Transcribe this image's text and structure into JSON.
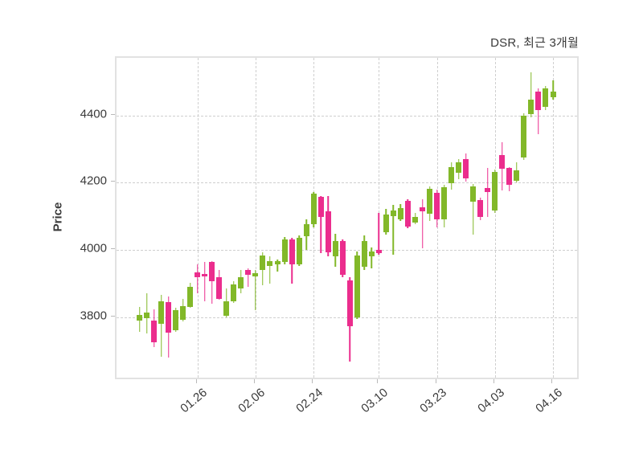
{
  "title": "DSR, 최근 3개월",
  "colors": {
    "up": "#82b829",
    "down": "#eb2d8d",
    "grid": "#cfcfcf",
    "plot_border": "#e2e2e2",
    "text": "#3a3a3a",
    "background": "#ffffff"
  },
  "chart_data": {
    "type": "candlestick",
    "title": "DSR, 최근 3개월",
    "subtitle": "",
    "xlabel": "",
    "ylabel": "Price",
    "legend": "none",
    "grid": "dashed",
    "y_ticks": [
      3800,
      4000,
      4200,
      4400
    ],
    "y_domain": [
      3610,
      4572
    ],
    "x_tick_labels": [
      "01.26",
      "02.06",
      "02.24",
      "03.10",
      "03.23",
      "04.03",
      "04.16"
    ],
    "x_tick_indices": [
      8,
      16,
      24,
      33,
      41,
      49,
      57
    ],
    "candle_columns": [
      "open",
      "high",
      "low",
      "close"
    ],
    "candles": [
      [
        3790,
        3830,
        3755,
        3806
      ],
      [
        3796,
        3870,
        3750,
        3814
      ],
      [
        3790,
        3824,
        3710,
        3726
      ],
      [
        3780,
        3867,
        3682,
        3847
      ],
      [
        3845,
        3862,
        3680,
        3753
      ],
      [
        3761,
        3827,
        3755,
        3820
      ],
      [
        3792,
        3853,
        3788,
        3833
      ],
      [
        3831,
        3902,
        3827,
        3890
      ],
      [
        3932,
        3957,
        3871,
        3918
      ],
      [
        3929,
        3963,
        3847,
        3922
      ],
      [
        3963,
        3967,
        3839,
        3906
      ],
      [
        3918,
        3941,
        3851,
        3855
      ],
      [
        3804,
        3886,
        3798,
        3847
      ],
      [
        3847,
        3906,
        3843,
        3898
      ],
      [
        3885,
        3940,
        3870,
        3919
      ],
      [
        3940,
        3946,
        3890,
        3925
      ],
      [
        3921,
        3941,
        3820,
        3931
      ],
      [
        3941,
        3992,
        3895,
        3984
      ],
      [
        3953,
        3980,
        3900,
        3966
      ],
      [
        3958,
        3972,
        3935,
        3966
      ],
      [
        3965,
        4039,
        3957,
        4030
      ],
      [
        4030,
        4036,
        3900,
        3957
      ],
      [
        3958,
        4043,
        3953,
        4037
      ],
      [
        4040,
        4090,
        4000,
        4076
      ],
      [
        4076,
        4172,
        4067,
        4168
      ],
      [
        4157,
        4161,
        3990,
        4098
      ],
      [
        4114,
        4160,
        3980,
        3992
      ],
      [
        3980,
        4047,
        3950,
        4027
      ],
      [
        4026,
        4031,
        3918,
        3925
      ],
      [
        3910,
        3918,
        3668,
        3773
      ],
      [
        3800,
        3996,
        3795,
        3984
      ],
      [
        3950,
        4043,
        3941,
        4026
      ],
      [
        3980,
        4008,
        3945,
        3996
      ],
      [
        4000,
        4111,
        3985,
        3990
      ],
      [
        4053,
        4121,
        4045,
        4105
      ],
      [
        4101,
        4133,
        3986,
        4117
      ],
      [
        4090,
        4137,
        4085,
        4125
      ],
      [
        4146,
        4150,
        4065,
        4069
      ],
      [
        4082,
        4109,
        4077,
        4097
      ],
      [
        4127,
        4150,
        4005,
        4115
      ],
      [
        4107,
        4190,
        4087,
        4183
      ],
      [
        4171,
        4179,
        4067,
        4091
      ],
      [
        4091,
        4194,
        4067,
        4187
      ],
      [
        4198,
        4262,
        4179,
        4246
      ],
      [
        4230,
        4271,
        4210,
        4260
      ],
      [
        4271,
        4287,
        4204,
        4212
      ],
      [
        4144,
        4196,
        4045,
        4188
      ],
      [
        4148,
        4156,
        4089,
        4097
      ],
      [
        4184,
        4244,
        4097,
        4172
      ],
      [
        4117,
        4240,
        4109,
        4232
      ],
      [
        4282,
        4320,
        4178,
        4242
      ],
      [
        4243,
        4246,
        4175,
        4194
      ],
      [
        4206,
        4260,
        4202,
        4237
      ],
      [
        4275,
        4406,
        4268,
        4400
      ],
      [
        4405,
        4530,
        4395,
        4448
      ],
      [
        4472,
        4480,
        4345,
        4417
      ],
      [
        4425,
        4488,
        4417,
        4480
      ],
      [
        4454,
        4504,
        4448,
        4472
      ]
    ]
  }
}
